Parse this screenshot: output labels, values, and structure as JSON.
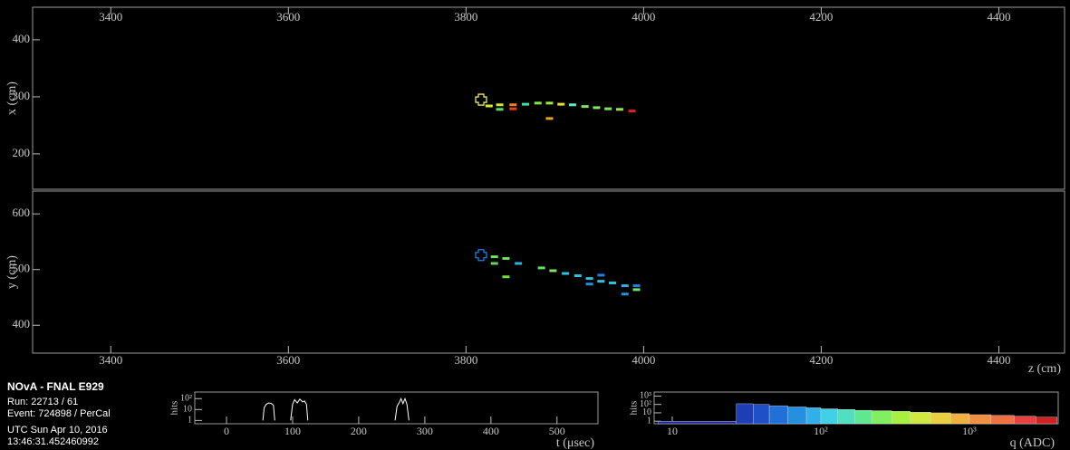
{
  "info": {
    "title": "NOvA - FNAL E929",
    "run": "Run:  22713 / 61",
    "event": "Event: 724898 / PerCal",
    "date": "UTC Sun Apr 10, 2016",
    "time": "13:46:31.452460992"
  },
  "chart_data": [
    {
      "type": "scatter",
      "xlabel": "z (cm)",
      "ylabel": "x (cm)",
      "xlim": [
        3312,
        4474
      ],
      "ylim": [
        138,
        457
      ],
      "xticks": [
        3400,
        3600,
        3800,
        4000,
        4200,
        4400
      ],
      "yticks": [
        200,
        300,
        400
      ],
      "vertex": [
        3817,
        295
      ],
      "vertex_color": "#e8e860",
      "x": [
        3826,
        3838,
        3838,
        3853,
        3853,
        3867,
        3881,
        3894,
        3894,
        3907,
        3920,
        3934,
        3947,
        3960,
        3973,
        3987
      ],
      "values": [
        284,
        286,
        278,
        286,
        279,
        287,
        289,
        289,
        262,
        287,
        286,
        283,
        281,
        279,
        278,
        275
      ],
      "colors": [
        "#d8e830",
        "#c8e840",
        "#60e060",
        "#f08020",
        "#e84020",
        "#40e0a0",
        "#80e840",
        "#a0e840",
        "#f0a020",
        "#e0e030",
        "#60e8c0",
        "#80e860",
        "#80e860",
        "#80e860",
        "#90e850",
        "#e02020"
      ]
    },
    {
      "type": "scatter",
      "ylabel": "y (cm)",
      "xlim": [
        3312,
        4474
      ],
      "ylim": [
        350,
        641
      ],
      "xticks": [
        3400,
        3600,
        3800,
        4000,
        4200,
        4400
      ],
      "yticks": [
        400,
        500,
        600
      ],
      "vertex": [
        3817,
        526
      ],
      "vertex_color": "#2080e0",
      "x": [
        3832,
        3832,
        3845,
        3845,
        3859,
        3885,
        3898,
        3912,
        3926,
        3939,
        3939,
        3952,
        3952,
        3965,
        3979,
        3979,
        3992,
        3992
      ],
      "values": [
        523,
        511,
        520,
        487,
        511,
        503,
        498,
        493,
        489,
        484,
        474,
        490,
        479,
        476,
        471,
        456,
        471,
        464
      ],
      "colors": [
        "#70e060",
        "#60d860",
        "#70e060",
        "#70e040",
        "#30b0e0",
        "#60e070",
        "#80e060",
        "#30c0e0",
        "#30c0e0",
        "#30c0e0",
        "#2090e0",
        "#2080e0",
        "#30c0e0",
        "#30c0e0",
        "#30b0e0",
        "#2090e0",
        "#2080e0",
        "#70e070"
      ]
    },
    {
      "type": "line",
      "xlabel": "t (μsec)",
      "ylabel": "hits",
      "log_y": true,
      "xlim": [
        -48,
        562
      ],
      "ylim": [
        0.5,
        400
      ],
      "xticks": [
        0,
        100,
        200,
        300,
        400,
        500
      ],
      "yticks": [
        1,
        10,
        {
          "value": 100,
          "label": "10²"
        }
      ],
      "color": "#ffffff",
      "x": [
        55,
        57,
        60,
        64,
        68,
        71,
        73,
        80,
        97,
        100,
        103,
        107,
        111,
        115,
        118,
        121,
        123,
        200,
        255,
        258,
        261,
        264,
        267,
        270,
        273,
        276
      ],
      "values": [
        1,
        15,
        30,
        40,
        35,
        25,
        1,
        null,
        1,
        30,
        80,
        40,
        90,
        50,
        60,
        30,
        1,
        null,
        1,
        20,
        40,
        100,
        35,
        100,
        30,
        1
      ]
    },
    {
      "type": "histogram",
      "xlabel": "q (ADC)",
      "ylabel": "hits",
      "log_x": true,
      "log_y": true,
      "xlim": [
        7.55,
        3966
      ],
      "ylim": [
        0.5,
        3000
      ],
      "xticks": [
        10,
        {
          "value": 100,
          "label": "10²"
        },
        {
          "value": 1000,
          "label": "10³"
        }
      ],
      "yticks": [
        1,
        10,
        {
          "value": 100,
          "label": "10²"
        },
        {
          "value": 1000,
          "label": "10³"
        }
      ],
      "bins": [
        8,
        27,
        35,
        45,
        60,
        80,
        100,
        130,
        170,
        220,
        300,
        400,
        550,
        750,
        1000,
        1400,
        2000,
        2800,
        3900
      ],
      "values": [
        1,
        120,
        100,
        70,
        50,
        40,
        30,
        25,
        20,
        18,
        15,
        12,
        10,
        8,
        6,
        5,
        4,
        3
      ],
      "colors": [
        "#1a2a9a",
        "#1f3db5",
        "#2050c8",
        "#2070d8",
        "#2590e0",
        "#30b0e8",
        "#40d0e8",
        "#50e0c0",
        "#60e890",
        "#80f060",
        "#a8f040",
        "#d0e840",
        "#e8d040",
        "#f0b040",
        "#f09040",
        "#f07040",
        "#e84040",
        "#d02020"
      ]
    }
  ]
}
